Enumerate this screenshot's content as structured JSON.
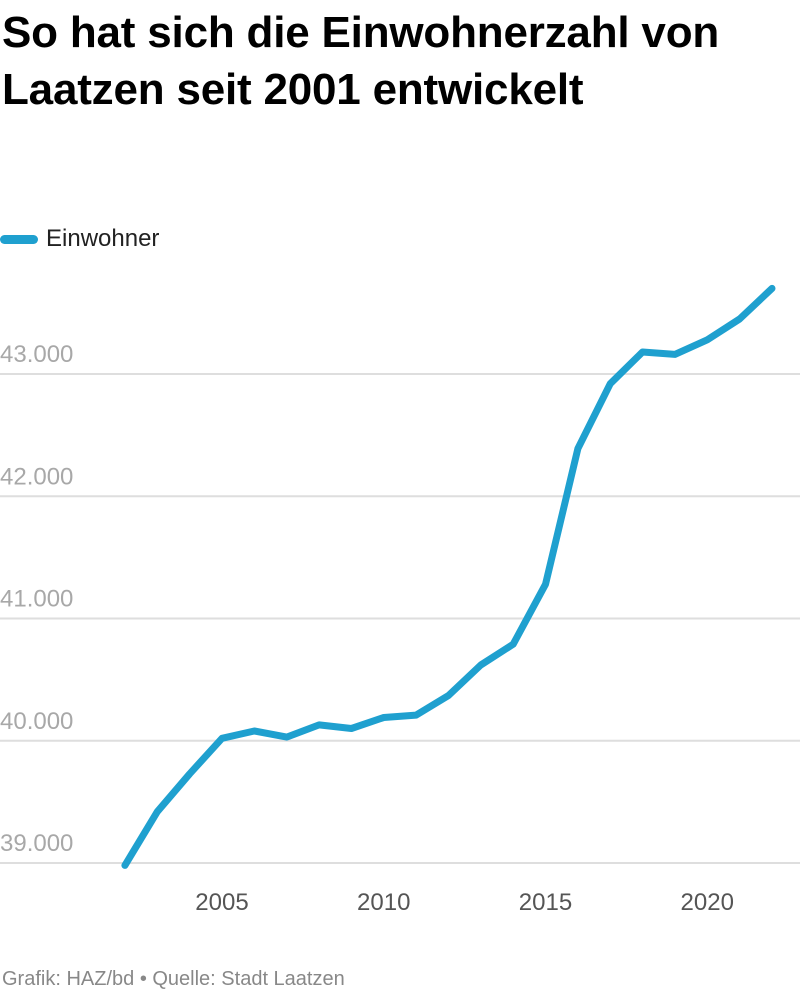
{
  "chart_data": {
    "type": "line",
    "title": "So hat sich die Einwohnerzahl von Laatzen seit 2001 entwickelt",
    "legend_position": "top-left",
    "grid": true,
    "x": [
      2002,
      2003,
      2004,
      2005,
      2006,
      2007,
      2008,
      2009,
      2010,
      2011,
      2012,
      2013,
      2014,
      2015,
      2016,
      2017,
      2018,
      2019,
      2020,
      2021,
      2022
    ],
    "series": [
      {
        "name": "Einwohner",
        "color": "#1fa0cf",
        "values": [
          38980,
          39420,
          39730,
          40020,
          40080,
          40030,
          40130,
          40100,
          40190,
          40210,
          40370,
          40620,
          40790,
          41280,
          42390,
          42920,
          43180,
          43160,
          43280,
          43450,
          43700
        ]
      }
    ],
    "x_ticks": [
      "2005",
      "2010",
      "2015",
      "2020"
    ],
    "y_ticks": [
      "39.000",
      "40.000",
      "41.000",
      "42.000",
      "43.000"
    ],
    "xlim": [
      2000.3,
      2022.8
    ],
    "ylim": [
      38900,
      43900
    ]
  },
  "footer": "Grafik: HAZ/bd • Quelle: Stadt Laatzen"
}
